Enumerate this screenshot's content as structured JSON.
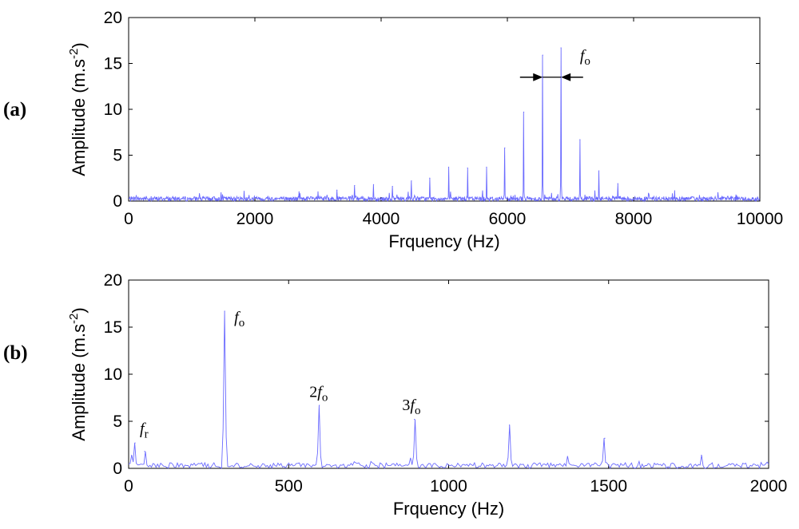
{
  "chart_data": [
    {
      "type": "line",
      "panel_label": "a",
      "xlabel": "Frquency (Hz)",
      "ylabel_main": "Amplitude (m.s",
      "ylabel_sup": "-2",
      "ylabel_close": ")",
      "xlim": [
        0,
        10000
      ],
      "ylim": [
        0,
        20
      ],
      "xticks": [
        "0",
        "2000",
        "4000",
        "6000",
        "8000",
        "10000"
      ],
      "yticks": [
        "0",
        "5",
        "10",
        "15",
        "20"
      ],
      "grid": false,
      "line_color": "#6a6aff",
      "noise_level": 0.5,
      "peaks": [
        {
          "x": 2700,
          "y": 1.0
        },
        {
          "x": 3000,
          "y": 1.0
        },
        {
          "x": 3300,
          "y": 1.2
        },
        {
          "x": 3580,
          "y": 1.7
        },
        {
          "x": 3880,
          "y": 1.8
        },
        {
          "x": 4180,
          "y": 1.6
        },
        {
          "x": 4480,
          "y": 2.2
        },
        {
          "x": 4770,
          "y": 2.5
        },
        {
          "x": 5070,
          "y": 3.7
        },
        {
          "x": 5370,
          "y": 3.6
        },
        {
          "x": 5670,
          "y": 3.7
        },
        {
          "x": 5960,
          "y": 5.8
        },
        {
          "x": 6260,
          "y": 9.7
        },
        {
          "x": 6560,
          "y": 15.9
        },
        {
          "x": 6850,
          "y": 16.7
        },
        {
          "x": 7150,
          "y": 6.7
        },
        {
          "x": 7450,
          "y": 3.3
        },
        {
          "x": 7750,
          "y": 1.9
        }
      ],
      "annotations": [
        {
          "text": "f",
          "sub": "o",
          "x": 7150,
          "y": 15.3
        }
      ],
      "arrows": {
        "y": 13.5,
        "left_tip": 6560,
        "right_tip": 6850,
        "left_start": 6200,
        "right_start": 7200
      }
    },
    {
      "type": "line",
      "panel_label": "b",
      "xlabel": "Frquency (Hz)",
      "ylabel_main": "Amplitude (m.s",
      "ylabel_sup": "-2",
      "ylabel_close": ")",
      "xlim": [
        0,
        2000
      ],
      "ylim": [
        0,
        20
      ],
      "xticks": [
        "0",
        "500",
        "1000",
        "1500",
        "2000"
      ],
      "yticks": [
        "0",
        "5",
        "10",
        "15",
        "20"
      ],
      "grid": false,
      "line_color": "#6a6aff",
      "noise_level": 0.6,
      "peaks": [
        {
          "x": 20,
          "y": 2.7
        },
        {
          "x": 50,
          "y": 1.8
        },
        {
          "x": 300,
          "y": 16.7
        },
        {
          "x": 596,
          "y": 6.7
        },
        {
          "x": 893,
          "y": 5.2
        },
        {
          "x": 1190,
          "y": 4.6
        },
        {
          "x": 1488,
          "y": 3.2
        },
        {
          "x": 1790,
          "y": 1.4
        }
      ],
      "annotations": [
        {
          "text": "f",
          "sub": "r",
          "x": 35,
          "y": 3.7
        },
        {
          "text": "f",
          "sub": "o",
          "x": 330,
          "y": 15.5
        },
        {
          "text": "2f",
          "sub": "o",
          "x": 565,
          "y": 7.6
        },
        {
          "text": "3f",
          "sub": "o",
          "x": 855,
          "y": 6.2
        }
      ]
    }
  ]
}
